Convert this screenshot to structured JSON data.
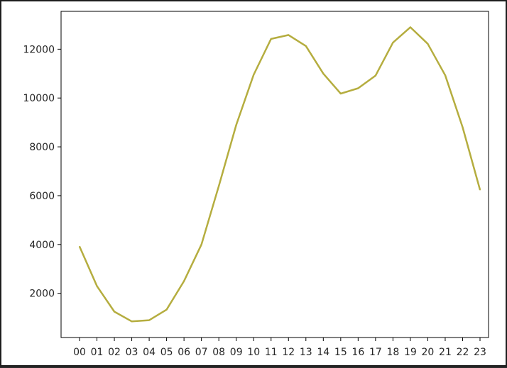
{
  "chart_data": {
    "type": "line",
    "title": "",
    "xlabel": "",
    "ylabel": "",
    "categories": [
      "00",
      "01",
      "02",
      "03",
      "04",
      "05",
      "06",
      "07",
      "08",
      "09",
      "10",
      "11",
      "12",
      "13",
      "14",
      "15",
      "16",
      "17",
      "18",
      "19",
      "20",
      "21",
      "22",
      "23"
    ],
    "series": [
      {
        "values": [
          3920,
          2300,
          1250,
          850,
          900,
          1330,
          2500,
          4000,
          6400,
          8900,
          10950,
          12420,
          12580,
          12130,
          11000,
          10180,
          10400,
          10920,
          12270,
          12900,
          12220,
          10930,
          8800,
          6240
        ],
        "color": "#b5ad3f"
      }
    ],
    "yticks": [
      2000,
      4000,
      6000,
      8000,
      10000,
      12000
    ],
    "ylim": [
      190,
      13550
    ],
    "grid": false,
    "legend": "none"
  }
}
